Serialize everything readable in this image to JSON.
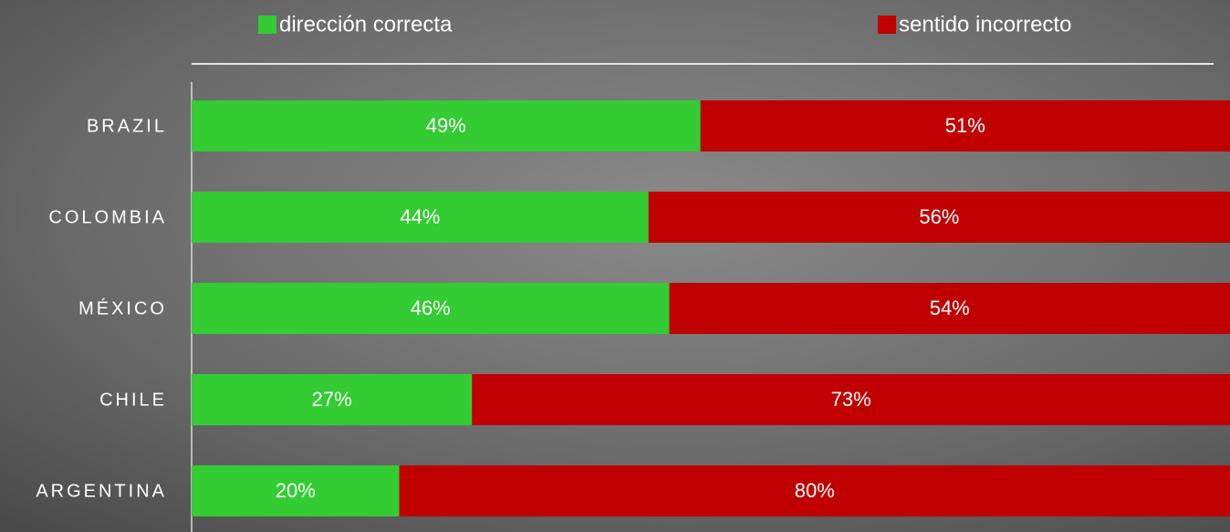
{
  "chart_data": {
    "type": "bar",
    "orientation": "horizontal",
    "stacked": true,
    "categories": [
      "BRAZIL",
      "COLOMBIA",
      "MÉXICO",
      "CHILE",
      "ARGENTINA"
    ],
    "series": [
      {
        "name": "dirección correcta",
        "color": "#33cc33",
        "values": [
          49,
          44,
          46,
          27,
          20
        ],
        "value_labels": [
          "49%",
          "44%",
          "46%",
          "27%",
          "20%"
        ]
      },
      {
        "name": "sentido incorrecto",
        "color": "#c00000",
        "values": [
          51,
          56,
          54,
          73,
          80
        ],
        "value_labels": [
          "51%",
          "56%",
          "54%",
          "73%",
          "80%"
        ]
      }
    ]
  }
}
